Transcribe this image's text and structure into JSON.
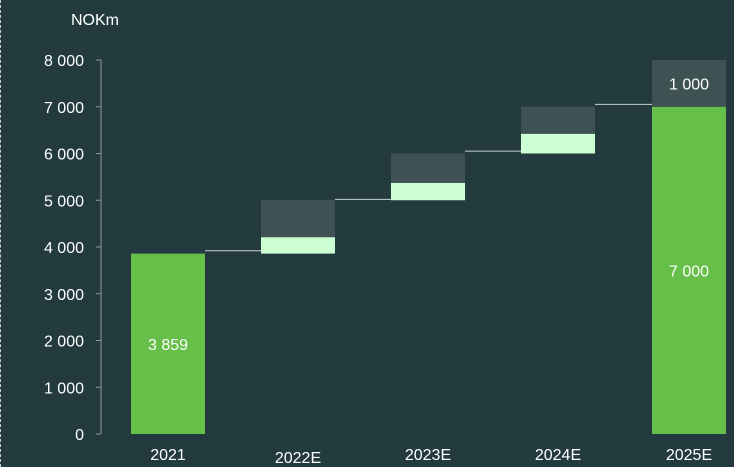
{
  "chart_data": {
    "type": "bar",
    "subtype": "waterfall",
    "ylabel": "NOKm",
    "ylim": [
      0,
      8000
    ],
    "yticks": [
      0,
      1000,
      2000,
      3000,
      4000,
      5000,
      6000,
      7000,
      8000
    ],
    "ytick_labels": [
      "0",
      "1 000",
      "2 000",
      "3 000",
      "4 000",
      "5 000",
      "6 000",
      "7 000",
      "8 000"
    ],
    "categories": [
      "2021",
      "2022E",
      "2023E",
      "2024E",
      "2025E"
    ],
    "bars": [
      {
        "category": "2021",
        "kind": "total",
        "base": 0,
        "value": 3859,
        "label": "3 859"
      },
      {
        "category": "2022E",
        "kind": "step",
        "base": 3859,
        "low": 350,
        "range": 800,
        "label": ""
      },
      {
        "category": "2023E",
        "kind": "step",
        "base": 5000,
        "low": 370,
        "range": 630,
        "label": ""
      },
      {
        "category": "2024E",
        "kind": "step",
        "base": 6000,
        "low": 420,
        "range": 580,
        "label": ""
      },
      {
        "category": "2025E",
        "kind": "total",
        "base": 0,
        "value": 7000,
        "label": "7 000",
        "extra": 1000,
        "extra_label": "1 000"
      }
    ],
    "connectors": [
      3920,
      5020,
      6050,
      7050
    ],
    "colors": {
      "background": "#233a3f",
      "total": "#65bf48",
      "step_low": "#ccffd1",
      "range": "#3e5254",
      "axis": "#8d9a9c",
      "connector": "#c9d1d3",
      "text": "#ffffff"
    },
    "grid": false
  }
}
